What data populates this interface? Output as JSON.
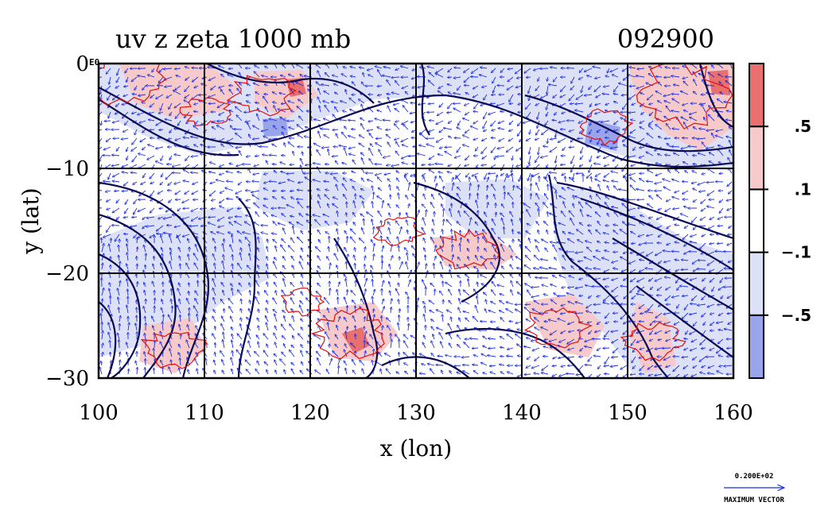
{
  "chart_data": {
    "type": "heatmap",
    "title_left": "uv z zeta 1000 mb",
    "title_right": "092900",
    "xlabel": "x (lon)",
    "ylabel": "y (lat)",
    "xlim": [
      100,
      160
    ],
    "ylim": [
      -30,
      0
    ],
    "x_ticks": [
      100,
      110,
      120,
      130,
      140,
      150,
      160
    ],
    "x_tick_labels": [
      "100",
      "110",
      "120",
      "130",
      "140",
      "150",
      "160"
    ],
    "y_ticks": [
      0,
      -10,
      -20,
      -30
    ],
    "y_tick_labels": [
      "0",
      "−10",
      "−20",
      "−30"
    ],
    "grid": true,
    "colorbar": {
      "levels": [
        -0.5,
        -0.1,
        0.1,
        0.5
      ],
      "labels": [
        "−.5",
        "−.1",
        ".1",
        ".5"
      ],
      "colors": [
        "#9aa4ea",
        "#dde1f7",
        "#ffffff",
        "#f6caca",
        "#ea7070"
      ]
    },
    "vector_scale_label": "0.200E+02",
    "vector_caption": "MAXIMUM VECTOR",
    "origin_label": "E0",
    "colors": {
      "vectors": "#1c2ee0",
      "contours_height": "#0a0a52",
      "contours_positive": "#e01010",
      "grid": "#000000"
    }
  }
}
